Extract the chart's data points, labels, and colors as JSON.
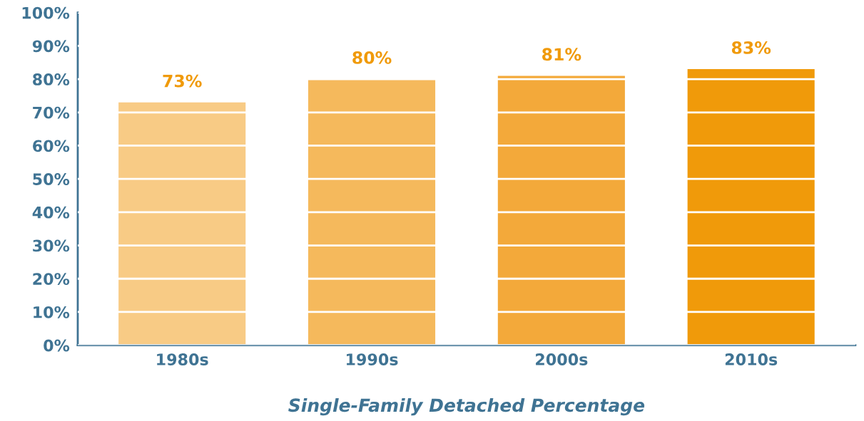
{
  "chart_data": {
    "type": "bar",
    "xlabel": "Single-Family Detached Percentage",
    "categories": [
      "1980s",
      "1990s",
      "2000s",
      "2010s"
    ],
    "values": [
      73,
      80,
      81,
      83
    ],
    "colors": [
      "#f8cb85",
      "#f5b95c",
      "#f3a93a",
      "#f09a0a"
    ],
    "value_labels": [
      "73%",
      "80%",
      "81%",
      "83%"
    ],
    "ylim": [
      0,
      100
    ],
    "yticks": [
      {
        "value": 0,
        "label": "0%"
      },
      {
        "value": 10,
        "label": "10%"
      },
      {
        "value": 20,
        "label": "20%"
      },
      {
        "value": 30,
        "label": "30%"
      },
      {
        "value": 40,
        "label": "40%"
      },
      {
        "value": 50,
        "label": "50%"
      },
      {
        "value": 60,
        "label": "60%"
      },
      {
        "value": 70,
        "label": "70%"
      },
      {
        "value": 80,
        "label": "80%"
      },
      {
        "value": 90,
        "label": "90%"
      },
      {
        "value": 100,
        "label": "100%"
      }
    ],
    "grid": "y",
    "legend": false
  }
}
